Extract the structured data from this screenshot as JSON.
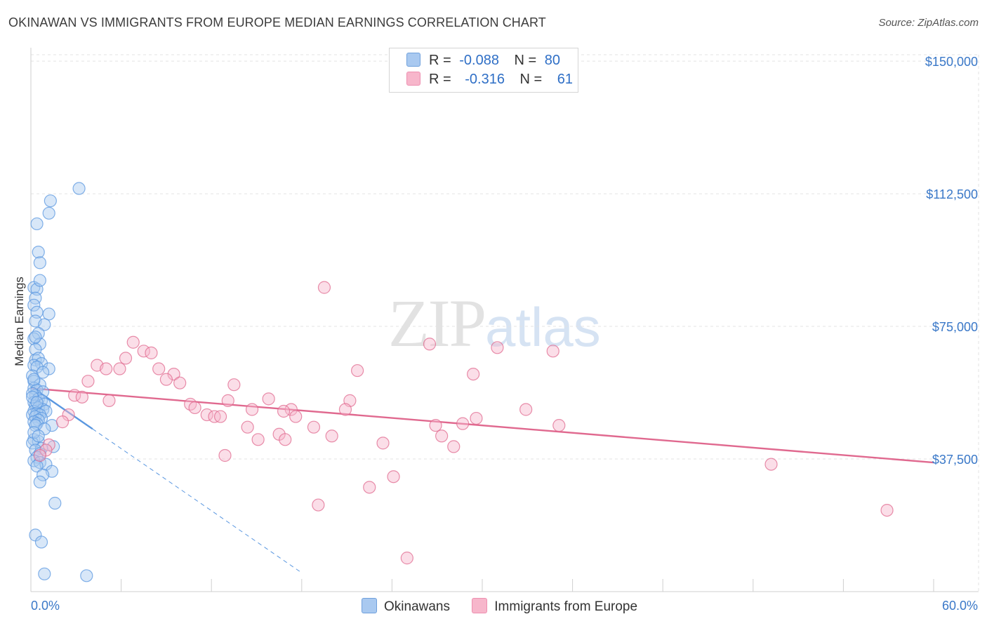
{
  "header": {
    "title": "OKINAWAN VS IMMIGRANTS FROM EUROPE MEDIAN EARNINGS CORRELATION CHART",
    "source": "Source: ZipAtlas.com"
  },
  "watermark": {
    "zip": "ZIP",
    "atlas": "atlas"
  },
  "legend": {
    "rows": [
      {
        "r_label": "R =",
        "r_value": "-0.088",
        "n_label": "N =",
        "n_value": "80",
        "color": "#a9c9f0"
      },
      {
        "r_label": "R =",
        "r_value": "-0.316",
        "n_label": "N =",
        "n_value": "61",
        "color": "#f7b6cb"
      }
    ]
  },
  "bottom_legend": {
    "items": [
      {
        "label": "Okinawans",
        "color": "#a9c9f0"
      },
      {
        "label": "Immigrants from Europe",
        "color": "#f7b6cb"
      }
    ]
  },
  "chart_data": {
    "type": "scatter",
    "title": "OKINAWAN VS IMMIGRANTS FROM EUROPE MEDIAN EARNINGS CORRELATION CHART",
    "xlabel": "",
    "ylabel": "Median Earnings",
    "xlim": [
      0,
      60
    ],
    "ylim": [
      0,
      153000
    ],
    "x_tick_labels": [
      "0.0%",
      "60.0%"
    ],
    "y_ticks": [
      37500,
      75000,
      112500,
      150000
    ],
    "y_tick_labels": [
      "$37,500",
      "$75,000",
      "$112,500",
      "$150,000"
    ],
    "grid": true,
    "series": [
      {
        "name": "Okinawans",
        "color": "#5a97e0",
        "fill": "#a9c9f0",
        "trend": {
          "x0": 0,
          "y0": 58000,
          "x1": 4.1,
          "y1": 46000,
          "dash_to_x": 18.0
        },
        "points": [
          [
            3.2,
            114000
          ],
          [
            1.3,
            110500
          ],
          [
            1.2,
            107000
          ],
          [
            0.4,
            104000
          ],
          [
            0.5,
            96000
          ],
          [
            0.6,
            93000
          ],
          [
            0.2,
            86000
          ],
          [
            0.4,
            85500
          ],
          [
            0.3,
            83000
          ],
          [
            0.2,
            81000
          ],
          [
            1.2,
            78500
          ],
          [
            0.4,
            79000
          ],
          [
            0.3,
            76500
          ],
          [
            0.9,
            75500
          ],
          [
            0.5,
            73000
          ],
          [
            0.2,
            71500
          ],
          [
            0.6,
            70000
          ],
          [
            0.3,
            68500
          ],
          [
            0.3,
            65500
          ],
          [
            0.5,
            66000
          ],
          [
            0.7,
            64500
          ],
          [
            0.2,
            64000
          ],
          [
            1.2,
            63000
          ],
          [
            0.4,
            63500
          ],
          [
            0.1,
            61000
          ],
          [
            0.2,
            59500
          ],
          [
            0.6,
            58500
          ],
          [
            0.2,
            57500
          ],
          [
            0.4,
            57000
          ],
          [
            0.8,
            56500
          ],
          [
            0.3,
            55500
          ],
          [
            0.1,
            56000
          ],
          [
            0.5,
            54500
          ],
          [
            0.7,
            54000
          ],
          [
            0.2,
            53500
          ],
          [
            0.9,
            53000
          ],
          [
            0.3,
            52500
          ],
          [
            0.5,
            52000
          ],
          [
            0.8,
            51500
          ],
          [
            1.0,
            51000
          ],
          [
            0.2,
            51000
          ],
          [
            0.4,
            50500
          ],
          [
            0.6,
            50000
          ],
          [
            0.1,
            50000
          ],
          [
            0.3,
            49500
          ],
          [
            0.7,
            49000
          ],
          [
            0.5,
            48500
          ],
          [
            0.2,
            48000
          ],
          [
            0.4,
            47500
          ],
          [
            1.4,
            47000
          ],
          [
            0.3,
            47000
          ],
          [
            0.9,
            46000
          ],
          [
            0.2,
            43000
          ],
          [
            0.5,
            42500
          ],
          [
            0.1,
            42000
          ],
          [
            1.5,
            41000
          ],
          [
            0.7,
            40500
          ],
          [
            0.3,
            40000
          ],
          [
            0.6,
            39000
          ],
          [
            0.4,
            38000
          ],
          [
            0.2,
            37000
          ],
          [
            0.6,
            36500
          ],
          [
            1.0,
            36000
          ],
          [
            0.4,
            35500
          ],
          [
            1.4,
            34000
          ],
          [
            0.8,
            33000
          ],
          [
            0.6,
            31000
          ],
          [
            1.6,
            25000
          ],
          [
            0.3,
            16000
          ],
          [
            0.7,
            14000
          ],
          [
            0.9,
            5000
          ],
          [
            3.7,
            4500
          ],
          [
            0.2,
            45000
          ],
          [
            0.5,
            44000
          ],
          [
            0.1,
            55000
          ],
          [
            0.8,
            62000
          ],
          [
            0.3,
            72000
          ],
          [
            0.6,
            88000
          ],
          [
            0.2,
            60000
          ],
          [
            0.4,
            53500
          ]
        ]
      },
      {
        "name": "Immigrants from Europe",
        "color": "#e0698f",
        "fill": "#f7b6cb",
        "trend": {
          "x0": 0,
          "y0": 57500,
          "x1": 60,
          "y1": 36500
        },
        "points": [
          [
            19.5,
            86000
          ],
          [
            6.8,
            70500
          ],
          [
            26.5,
            70000
          ],
          [
            31.0,
            69000
          ],
          [
            34.7,
            68000
          ],
          [
            7.5,
            68000
          ],
          [
            8.0,
            67500
          ],
          [
            6.3,
            66000
          ],
          [
            4.4,
            64000
          ],
          [
            5.0,
            63000
          ],
          [
            5.9,
            63000
          ],
          [
            8.5,
            63000
          ],
          [
            21.7,
            62500
          ],
          [
            29.4,
            61500
          ],
          [
            9.5,
            61500
          ],
          [
            9.0,
            60000
          ],
          [
            9.9,
            59000
          ],
          [
            3.8,
            59500
          ],
          [
            13.5,
            58500
          ],
          [
            2.9,
            55500
          ],
          [
            3.4,
            55000
          ],
          [
            5.2,
            54000
          ],
          [
            15.8,
            54500
          ],
          [
            13.1,
            54000
          ],
          [
            21.2,
            54000
          ],
          [
            10.6,
            53000
          ],
          [
            10.9,
            52000
          ],
          [
            14.7,
            51500
          ],
          [
            17.3,
            51500
          ],
          [
            20.9,
            51500
          ],
          [
            32.9,
            51500
          ],
          [
            16.8,
            51000
          ],
          [
            11.7,
            50000
          ],
          [
            12.2,
            49500
          ],
          [
            12.6,
            49500
          ],
          [
            17.6,
            49500
          ],
          [
            2.5,
            50000
          ],
          [
            29.6,
            49000
          ],
          [
            28.7,
            47500
          ],
          [
            35.1,
            47000
          ],
          [
            26.9,
            47000
          ],
          [
            18.8,
            46500
          ],
          [
            14.4,
            46500
          ],
          [
            16.5,
            44500
          ],
          [
            20.0,
            44000
          ],
          [
            27.3,
            44000
          ],
          [
            15.1,
            43000
          ],
          [
            16.9,
            43000
          ],
          [
            23.4,
            42000
          ],
          [
            28.1,
            41000
          ],
          [
            1.2,
            41500
          ],
          [
            1.0,
            40000
          ],
          [
            12.9,
            38500
          ],
          [
            0.6,
            38500
          ],
          [
            49.2,
            36000
          ],
          [
            24.1,
            32500
          ],
          [
            22.5,
            29500
          ],
          [
            19.1,
            24500
          ],
          [
            56.9,
            23000
          ],
          [
            25.0,
            9500
          ],
          [
            2.1,
            48000
          ]
        ]
      }
    ]
  }
}
